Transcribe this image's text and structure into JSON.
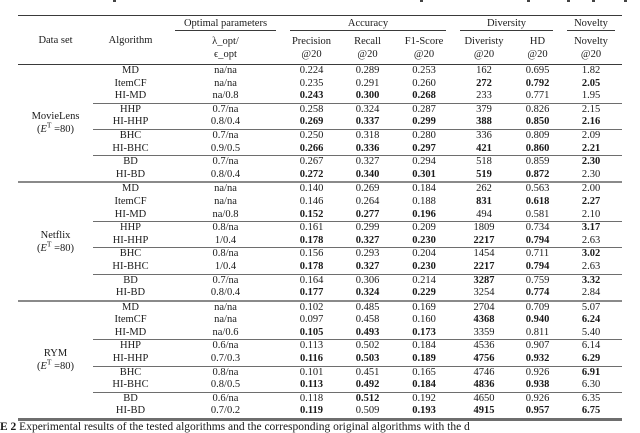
{
  "table": {
    "header": {
      "dataset": "Data set",
      "algorithm": "Algorithm",
      "groups": [
        {
          "label": "Optimal parameters",
          "subs": [
            {
              "l1": "λ_opt/",
              "l2": "ϵ_opt"
            }
          ]
        },
        {
          "label": "Accuracy",
          "subs": [
            {
              "l1": "Precision",
              "l2": "@20"
            },
            {
              "l1": "Recall",
              "l2": "@20"
            },
            {
              "l1": "F1-Score",
              "l2": "@20"
            }
          ]
        },
        {
          "label": "Diversity",
          "subs": [
            {
              "l1": "Diveristy",
              "l2": "@20"
            },
            {
              "l1": "HD",
              "l2": "@20"
            }
          ]
        },
        {
          "label": "Novelty",
          "subs": [
            {
              "l1": "Novelty",
              "l2": "@20"
            }
          ]
        }
      ]
    },
    "value_columns": [
      "precision",
      "recall",
      "f1-score",
      "diversity",
      "hd",
      "novelty"
    ],
    "datasets": [
      {
        "name": "MovieLens",
        "cond_pre": "(",
        "cond_e": "E",
        "cond_sup": "T",
        "cond_post": " =80)",
        "rows": [
          {
            "algorithm": "MD",
            "params": "na/na",
            "sep": false,
            "values": [
              "0.224",
              "0.289",
              "0.253",
              "162",
              "0.695",
              "1.82"
            ],
            "bold": [
              0,
              0,
              0,
              0,
              0,
              0
            ]
          },
          {
            "algorithm": "ItemCF",
            "params": "na/na",
            "sep": false,
            "values": [
              "0.235",
              "0.291",
              "0.260",
              "272",
              "0.792",
              "2.05"
            ],
            "bold": [
              0,
              0,
              0,
              1,
              1,
              1
            ]
          },
          {
            "algorithm": "HI-MD",
            "params": "na/0.8",
            "sep": false,
            "values": [
              "0.243",
              "0.300",
              "0.268",
              "233",
              "0.771",
              "1.95"
            ],
            "bold": [
              1,
              1,
              1,
              0,
              0,
              0
            ]
          },
          {
            "algorithm": "HHP",
            "params": "0.7/na",
            "sep": true,
            "values": [
              "0.258",
              "0.324",
              "0.287",
              "379",
              "0.826",
              "2.15"
            ],
            "bold": [
              0,
              0,
              0,
              0,
              0,
              0
            ]
          },
          {
            "algorithm": "HI-HHP",
            "params": "0.8/0.4",
            "sep": false,
            "values": [
              "0.269",
              "0.337",
              "0.299",
              "388",
              "0.850",
              "2.16"
            ],
            "bold": [
              1,
              1,
              1,
              1,
              1,
              1
            ]
          },
          {
            "algorithm": "BHC",
            "params": "0.7/na",
            "sep": true,
            "values": [
              "0.250",
              "0.318",
              "0.280",
              "336",
              "0.809",
              "2.09"
            ],
            "bold": [
              0,
              0,
              0,
              0,
              0,
              0
            ]
          },
          {
            "algorithm": "HI-BHC",
            "params": "0.9/0.5",
            "sep": false,
            "values": [
              "0.266",
              "0.336",
              "0.297",
              "421",
              "0.860",
              "2.21"
            ],
            "bold": [
              1,
              1,
              1,
              1,
              1,
              1
            ]
          },
          {
            "algorithm": "BD",
            "params": "0.7/na",
            "sep": true,
            "values": [
              "0.267",
              "0.327",
              "0.294",
              "518",
              "0.859",
              "2.30"
            ],
            "bold": [
              0,
              0,
              0,
              0,
              0,
              1
            ]
          },
          {
            "algorithm": "HI-BD",
            "params": "0.8/0.4",
            "sep": false,
            "values": [
              "0.272",
              "0.340",
              "0.301",
              "519",
              "0.872",
              "2.30"
            ],
            "bold": [
              1,
              1,
              1,
              1,
              1,
              0
            ]
          }
        ]
      },
      {
        "name": "Netflix",
        "cond_pre": "(",
        "cond_e": "E",
        "cond_sup": "T",
        "cond_post": " =80)",
        "rows": [
          {
            "algorithm": "MD",
            "params": "na/na",
            "sep": false,
            "values": [
              "0.140",
              "0.269",
              "0.184",
              "262",
              "0.563",
              "2.00"
            ],
            "bold": [
              0,
              0,
              0,
              0,
              0,
              0
            ]
          },
          {
            "algorithm": "ItemCF",
            "params": "na/na",
            "sep": false,
            "values": [
              "0.146",
              "0.264",
              "0.188",
              "831",
              "0.618",
              "2.27"
            ],
            "bold": [
              0,
              0,
              0,
              1,
              1,
              1
            ]
          },
          {
            "algorithm": "HI-MD",
            "params": "na/0.8",
            "sep": false,
            "values": [
              "0.152",
              "0.277",
              "0.196",
              "494",
              "0.581",
              "2.10"
            ],
            "bold": [
              1,
              1,
              1,
              0,
              0,
              0
            ]
          },
          {
            "algorithm": "HHP",
            "params": "0.8/na",
            "sep": true,
            "values": [
              "0.161",
              "0.299",
              "0.209",
              "1809",
              "0.734",
              "3.17"
            ],
            "bold": [
              0,
              0,
              0,
              0,
              0,
              1
            ]
          },
          {
            "algorithm": "HI-HHP",
            "params": "1/0.4",
            "sep": false,
            "values": [
              "0.178",
              "0.327",
              "0.230",
              "2217",
              "0.794",
              "2.63"
            ],
            "bold": [
              1,
              1,
              1,
              1,
              1,
              0
            ]
          },
          {
            "algorithm": "BHC",
            "params": "0.8/na",
            "sep": true,
            "values": [
              "0.156",
              "0.293",
              "0.204",
              "1454",
              "0.711",
              "3.02"
            ],
            "bold": [
              0,
              0,
              0,
              0,
              0,
              1
            ]
          },
          {
            "algorithm": "HI-BHC",
            "params": "1/0.4",
            "sep": false,
            "values": [
              "0.178",
              "0.327",
              "0.230",
              "2217",
              "0.794",
              "2.63"
            ],
            "bold": [
              1,
              1,
              1,
              1,
              1,
              0
            ]
          },
          {
            "algorithm": "BD",
            "params": "0.7/na",
            "sep": true,
            "values": [
              "0.164",
              "0.306",
              "0.214",
              "3287",
              "0.759",
              "3.32"
            ],
            "bold": [
              0,
              0,
              0,
              1,
              0,
              1
            ]
          },
          {
            "algorithm": "HI-BD",
            "params": "0.8/0.4",
            "sep": false,
            "values": [
              "0.177",
              "0.324",
              "0.229",
              "3254",
              "0.774",
              "2.84"
            ],
            "bold": [
              1,
              1,
              1,
              0,
              1,
              0
            ]
          }
        ]
      },
      {
        "name": "RYM",
        "cond_pre": "(",
        "cond_e": "E",
        "cond_sup": "T",
        "cond_post": " =80)",
        "rows": [
          {
            "algorithm": "MD",
            "params": "na/na",
            "sep": false,
            "values": [
              "0.102",
              "0.485",
              "0.169",
              "2704",
              "0.709",
              "5.07"
            ],
            "bold": [
              0,
              0,
              0,
              0,
              0,
              0
            ]
          },
          {
            "algorithm": "ItemCF",
            "params": "na/na",
            "sep": false,
            "values": [
              "0.097",
              "0.458",
              "0.160",
              "4368",
              "0.940",
              "6.24"
            ],
            "bold": [
              0,
              0,
              0,
              1,
              1,
              1
            ]
          },
          {
            "algorithm": "HI-MD",
            "params": "na/0.6",
            "sep": false,
            "values": [
              "0.105",
              "0.493",
              "0.173",
              "3359",
              "0.811",
              "5.40"
            ],
            "bold": [
              1,
              1,
              1,
              0,
              0,
              0
            ]
          },
          {
            "algorithm": "HHP",
            "params": "0.6/na",
            "sep": true,
            "values": [
              "0.113",
              "0.502",
              "0.184",
              "4536",
              "0.907",
              "6.14"
            ],
            "bold": [
              0,
              0,
              0,
              0,
              0,
              0
            ]
          },
          {
            "algorithm": "HI-HHP",
            "params": "0.7/0.3",
            "sep": false,
            "values": [
              "0.116",
              "0.503",
              "0.189",
              "4756",
              "0.932",
              "6.29"
            ],
            "bold": [
              1,
              1,
              1,
              1,
              1,
              1
            ]
          },
          {
            "algorithm": "BHC",
            "params": "0.8/na",
            "sep": true,
            "values": [
              "0.101",
              "0.451",
              "0.165",
              "4746",
              "0.926",
              "6.91"
            ],
            "bold": [
              0,
              0,
              0,
              0,
              0,
              1
            ]
          },
          {
            "algorithm": "HI-BHC",
            "params": "0.8/0.5",
            "sep": false,
            "values": [
              "0.113",
              "0.492",
              "0.184",
              "4836",
              "0.938",
              "6.30"
            ],
            "bold": [
              1,
              1,
              1,
              1,
              1,
              0
            ]
          },
          {
            "algorithm": "BD",
            "params": "0.6/na",
            "sep": true,
            "values": [
              "0.118",
              "0.512",
              "0.192",
              "4650",
              "0.926",
              "6.35"
            ],
            "bold": [
              0,
              1,
              0,
              0,
              0,
              0
            ]
          },
          {
            "algorithm": "HI-BD",
            "params": "0.7/0.2",
            "sep": false,
            "values": [
              "0.119",
              "0.509",
              "0.193",
              "4915",
              "0.957",
              "6.75"
            ],
            "bold": [
              1,
              0,
              1,
              1,
              1,
              1
            ]
          }
        ]
      }
    ]
  },
  "caption": {
    "label": "E 2",
    "text": " Experimental results of the tested algorithms and the corresponding original algorithms with the d"
  }
}
